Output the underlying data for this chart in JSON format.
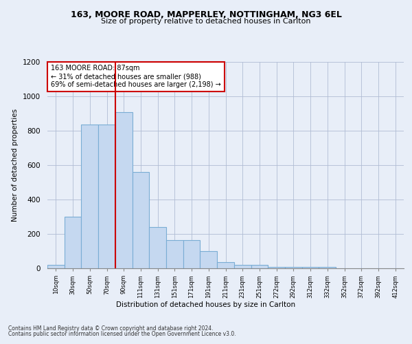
{
  "title1": "163, MOORE ROAD, MAPPERLEY, NOTTINGHAM, NG3 6EL",
  "title2": "Size of property relative to detached houses in Carlton",
  "xlabel": "Distribution of detached houses by size in Carlton",
  "ylabel": "Number of detached properties",
  "bar_labels": [
    "10sqm",
    "30sqm",
    "50sqm",
    "70sqm",
    "90sqm",
    "111sqm",
    "131sqm",
    "151sqm",
    "171sqm",
    "191sqm",
    "211sqm",
    "231sqm",
    "251sqm",
    "272sqm",
    "292sqm",
    "312sqm",
    "332sqm",
    "352sqm",
    "372sqm",
    "392sqm",
    "412sqm"
  ],
  "bar_values": [
    20,
    300,
    835,
    835,
    910,
    560,
    240,
    165,
    165,
    100,
    35,
    22,
    20,
    8,
    10,
    10,
    10,
    0,
    0,
    0,
    0
  ],
  "bar_color": "#c5d8f0",
  "bar_edge_color": "#7aadd4",
  "vline_color": "#cc0000",
  "vline_x": 3.5,
  "ylim": [
    0,
    1200
  ],
  "yticks": [
    0,
    200,
    400,
    600,
    800,
    1000,
    1200
  ],
  "annotation_line1": "163 MOORE ROAD: 87sqm",
  "annotation_line2": "← 31% of detached houses are smaller (988)",
  "annotation_line3": "69% of semi-detached houses are larger (2,198) →",
  "annotation_box_color": "#ffffff",
  "annotation_box_edge": "#cc0000",
  "footer1": "Contains HM Land Registry data © Crown copyright and database right 2024.",
  "footer2": "Contains public sector information licensed under the Open Government Licence v3.0.",
  "bg_color": "#e8eef8",
  "plot_bg_color": "#e8eef8"
}
